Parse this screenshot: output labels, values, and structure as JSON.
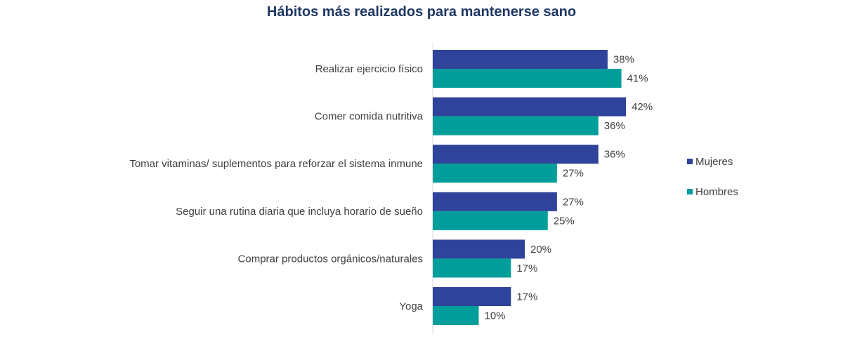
{
  "chart_data": {
    "type": "bar",
    "orientation": "horizontal",
    "title": "Hábitos más realizados para mantenerse sano",
    "categories": [
      "Realizar ejercicio físico",
      "Comer comida nutritiva",
      "Tomar vitaminas/ suplementos para reforzar el sistema inmune",
      "Seguir una rutina diaria que incluya horario de sueño",
      "Comprar productos orgánicos/naturales",
      "Yoga"
    ],
    "series": [
      {
        "name": "Mujeres",
        "color": "#2e4399",
        "values": [
          38,
          42,
          36,
          27,
          20,
          17
        ],
        "labels": [
          "38%",
          "42%",
          "36%",
          "27%",
          "20%",
          "17%"
        ]
      },
      {
        "name": "Hombres",
        "color": "#009e9a",
        "values": [
          41,
          36,
          27,
          25,
          17,
          10
        ],
        "labels": [
          "41%",
          "36%",
          "27%",
          "25%",
          "17%",
          "10%"
        ]
      }
    ],
    "value_unit": "%",
    "xlim": [
      0,
      45
    ],
    "grid": false,
    "legend_position": "right"
  }
}
